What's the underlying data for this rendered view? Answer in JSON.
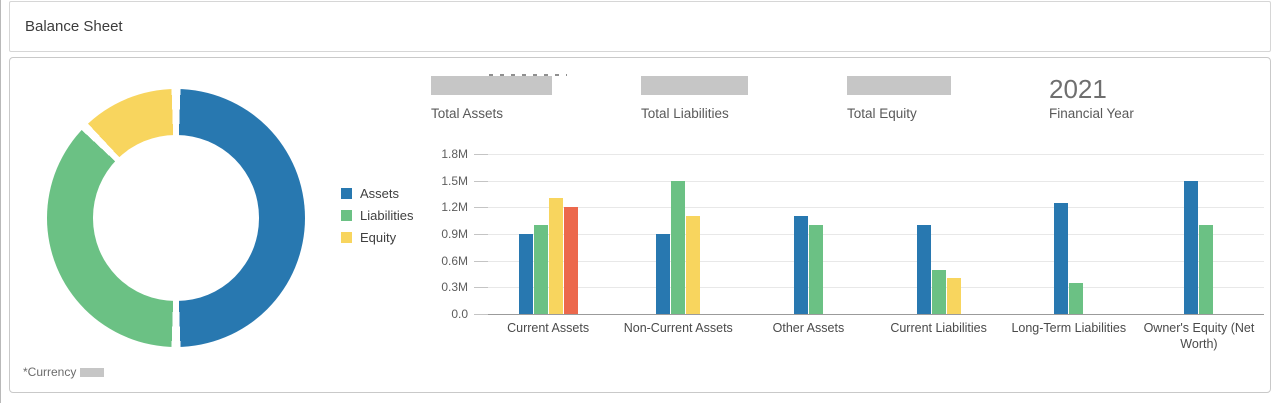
{
  "header": {
    "title": "Balance Sheet"
  },
  "legend": {
    "items": [
      {
        "label": "Assets",
        "color": "#2878b0"
      },
      {
        "label": "Liabilities",
        "color": "#6bc184"
      },
      {
        "label": "Equity",
        "color": "#f8d55e"
      }
    ]
  },
  "kpis": [
    {
      "label": "Total Assets",
      "value": "",
      "redacted": true,
      "block_width": 121
    },
    {
      "label": "Total Liabilities",
      "value": "",
      "redacted": true,
      "block_width": 107
    },
    {
      "label": "Total Equity",
      "value": "",
      "redacted": true,
      "block_width": 104
    },
    {
      "label": "Financial Year",
      "value": "2021",
      "redacted": false
    }
  ],
  "footnote": {
    "label": "*Currency"
  },
  "colors": {
    "redaction": "#c6c6c6",
    "grid": "#e8e8e8",
    "axis": "#9b9b9b",
    "card_border": "#c9c9c9"
  },
  "chart_data": [
    {
      "type": "pie",
      "subtype": "donut",
      "legend_position": "left",
      "slices": [
        {
          "label": "Assets",
          "percent": 50,
          "color": "#2878b0"
        },
        {
          "label": "Liabilities",
          "percent": 37.5,
          "color": "#6bc184"
        },
        {
          "label": "Equity",
          "percent": 12.5,
          "color": "#f8d55e"
        }
      ]
    },
    {
      "type": "bar",
      "unit": "M",
      "categories": [
        "Current Assets",
        "Non-Current Assets",
        "Other Assets",
        "Current Liabilities",
        "Long-Term Liabilities",
        "Owner's Equity (Net Worth)"
      ],
      "series": [
        {
          "name": "Assets",
          "color": "#2878b0",
          "values": [
            0.9,
            0.9,
            1.1,
            1.0,
            1.25,
            1.5
          ]
        },
        {
          "name": "Liabilities",
          "color": "#6bc184",
          "values": [
            1.0,
            1.5,
            1.0,
            0.5,
            0.35,
            1.0
          ]
        },
        {
          "name": "Equity",
          "color": "#f8d55e",
          "values": [
            1.3,
            1.1,
            null,
            0.4,
            null,
            null
          ]
        },
        {
          "name": "",
          "color": "#ec684c",
          "values": [
            1.2,
            null,
            null,
            null,
            null,
            null
          ]
        }
      ],
      "ylim": [
        0,
        1.8
      ],
      "yticks": [
        {
          "value": 1.8,
          "label": "1.8M"
        },
        {
          "value": 1.5,
          "label": "1.5M"
        },
        {
          "value": 1.2,
          "label": "1.2M"
        },
        {
          "value": 0.9,
          "label": "0.9M"
        },
        {
          "value": 0.6,
          "label": "0.6M"
        },
        {
          "value": 0.3,
          "label": "0.3M"
        },
        {
          "value": 0,
          "label": "0.0"
        }
      ],
      "grid": true
    }
  ]
}
